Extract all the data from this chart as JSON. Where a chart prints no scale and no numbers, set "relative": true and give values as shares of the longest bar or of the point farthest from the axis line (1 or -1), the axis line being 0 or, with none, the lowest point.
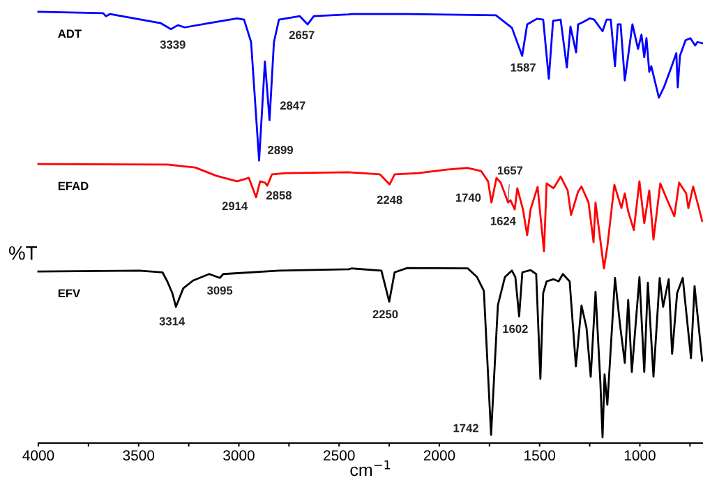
{
  "chart_data": {
    "type": "line",
    "relative": true,
    "xlabel": "cm$^{−1}$",
    "ylabel": "%T",
    "xlim": [
      4000,
      685
    ],
    "xticks": [
      4000,
      {
        "value": 3750,
        "label": null
      },
      3500,
      {
        "value": 3250,
        "label": null
      },
      3000,
      {
        "value": 2750,
        "label": null
      },
      2500,
      {
        "value": 2250,
        "label": null
      },
      2000,
      {
        "value": 1750,
        "label": null
      },
      1500,
      {
        "value": 1250,
        "label": null
      },
      1000,
      {
        "value": 750,
        "label": null
      }
    ],
    "grid": false,
    "legend": false,
    "line_style": "solid",
    "marker": "none",
    "series": [
      {
        "name": "ADT",
        "color": "#0000ff",
        "x": [
          4000,
          3677,
          3663,
          3642,
          3391,
          3339,
          3304,
          3270,
          3148,
          3009,
          2974,
          2939,
          2899,
          2870,
          2847,
          2825,
          2800,
          2696,
          2657,
          2626,
          2452,
          2438,
          2160,
          1718,
          1638,
          1587,
          1562,
          1513,
          1482,
          1454,
          1433,
          1395,
          1364,
          1346,
          1318,
          1308,
          1284,
          1249,
          1228,
          1186,
          1166,
          1145,
          1124,
          1110,
          1096,
          1075,
          1037,
          1009,
          992,
          978,
          967,
          953,
          943,
          905,
          880,
          845,
          818,
          811,
          800,
          772,
          748,
          724,
          713,
          686
        ],
        "values": [
          1.0,
          0.997,
          0.99,
          0.995,
          0.974,
          0.96,
          0.969,
          0.964,
          0.974,
          0.985,
          0.982,
          0.93,
          0.655,
          0.885,
          0.749,
          0.93,
          0.982,
          0.99,
          0.971,
          0.99,
          0.994,
          0.995,
          0.995,
          0.992,
          0.963,
          0.898,
          0.971,
          0.984,
          0.982,
          0.845,
          0.979,
          0.982,
          0.871,
          0.966,
          0.906,
          0.971,
          0.976,
          0.985,
          0.982,
          0.955,
          0.982,
          0.982,
          0.874,
          0.971,
          0.971,
          0.841,
          0.971,
          0.914,
          0.947,
          0.895,
          0.939,
          0.861,
          0.874,
          0.801,
          0.825,
          0.869,
          0.904,
          0.825,
          0.898,
          0.934,
          0.939,
          0.922,
          0.93,
          0.927
        ]
      },
      {
        "name": "EFAD",
        "color": "#ff0000",
        "x": [
          4000,
          3357,
          3217,
          3113,
          3009,
          2950,
          2914,
          2894,
          2870,
          2858,
          2835,
          2765,
          2452,
          2296,
          2248,
          2223,
          2105,
          1965,
          1861,
          1792,
          1757,
          1740,
          1715,
          1694,
          1657,
          1645,
          1624,
          1611,
          1583,
          1562,
          1545,
          1510,
          1478,
          1465,
          1430,
          1395,
          1360,
          1343,
          1308,
          1291,
          1256,
          1231,
          1221,
          1179,
          1162,
          1127,
          1092,
          1075,
          1058,
          1030,
          1002,
          978,
          953,
          932,
          898,
          863,
          828,
          804,
          769,
          758,
          734,
          710,
          689
        ],
        "values": [
          0.647,
          0.646,
          0.639,
          0.62,
          0.607,
          0.615,
          0.57,
          0.607,
          0.604,
          0.597,
          0.623,
          0.626,
          0.628,
          0.623,
          0.6,
          0.623,
          0.626,
          0.634,
          0.638,
          0.631,
          0.607,
          0.558,
          0.615,
          0.604,
          0.558,
          0.563,
          0.542,
          0.591,
          0.542,
          0.482,
          0.542,
          0.594,
          0.445,
          0.602,
          0.591,
          0.618,
          0.586,
          0.529,
          0.583,
          0.595,
          0.558,
          0.466,
          0.558,
          0.405,
          0.456,
          0.599,
          0.545,
          0.579,
          0.537,
          0.494,
          0.607,
          0.51,
          0.586,
          0.472,
          0.602,
          0.563,
          0.526,
          0.604,
          0.579,
          0.545,
          0.595,
          0.553,
          0.515
        ]
      },
      {
        "name": "EFV",
        "color": "#000000",
        "x": [
          4000,
          3496,
          3381,
          3357,
          3332,
          3314,
          3277,
          3228,
          3148,
          3095,
          3078,
          2800,
          2452,
          2438,
          2289,
          2250,
          2223,
          2160,
          1858,
          1812,
          1778,
          1742,
          1708,
          1673,
          1638,
          1621,
          1602,
          1586,
          1545,
          1517,
          1496,
          1482,
          1465,
          1430,
          1405,
          1384,
          1350,
          1319,
          1291,
          1266,
          1245,
          1221,
          1197,
          1186,
          1176,
          1162,
          1124,
          1099,
          1075,
          1058,
          1040,
          1002,
          978,
          960,
          932,
          901,
          884,
          856,
          839,
          814,
          786,
          745,
          727,
          689
        ],
        "values": [
          0.398,
          0.4,
          0.396,
          0.375,
          0.348,
          0.316,
          0.359,
          0.377,
          0.392,
          0.383,
          0.392,
          0.4,
          0.403,
          0.405,
          0.4,
          0.328,
          0.396,
          0.406,
          0.405,
          0.385,
          0.353,
          0.019,
          0.32,
          0.385,
          0.4,
          0.385,
          0.294,
          0.396,
          0.401,
          0.392,
          0.149,
          0.348,
          0.375,
          0.38,
          0.375,
          0.392,
          0.375,
          0.178,
          0.319,
          0.267,
          0.154,
          0.351,
          0.142,
          0.013,
          0.159,
          0.089,
          0.383,
          0.275,
          0.186,
          0.332,
          0.165,
          0.385,
          0.165,
          0.372,
          0.154,
          0.383,
          0.316,
          0.38,
          0.207,
          0.348,
          0.383,
          0.197,
          0.364,
          0.191
        ]
      }
    ],
    "annotations": [
      {
        "text": "3339",
        "x": 3339,
        "y": 0.96
      },
      {
        "text": "2657",
        "x": 2657,
        "y": 0.971
      },
      {
        "text": "2847",
        "x": 2847,
        "y": 0.749
      },
      {
        "text": "2899",
        "x": 2899,
        "y": 0.655
      },
      {
        "text": "1587",
        "x": 1587,
        "y": 0.898
      },
      {
        "text": "1657",
        "x": 1657,
        "y": 0.558
      },
      {
        "text": "2914",
        "x": 2914,
        "y": 0.57
      },
      {
        "text": "2858",
        "x": 2858,
        "y": 0.597
      },
      {
        "text": "2248",
        "x": 2248,
        "y": 0.6
      },
      {
        "text": "1740",
        "x": 1740,
        "y": 0.558
      },
      {
        "text": "1624",
        "x": 1624,
        "y": 0.542
      },
      {
        "text": "3314",
        "x": 3314,
        "y": 0.316
      },
      {
        "text": "3095",
        "x": 3095,
        "y": 0.383
      },
      {
        "text": "2250",
        "x": 2250,
        "y": 0.328
      },
      {
        "text": "1602",
        "x": 1602,
        "y": 0.294
      },
      {
        "text": "1742",
        "x": 1742,
        "y": 0.019
      }
    ]
  }
}
